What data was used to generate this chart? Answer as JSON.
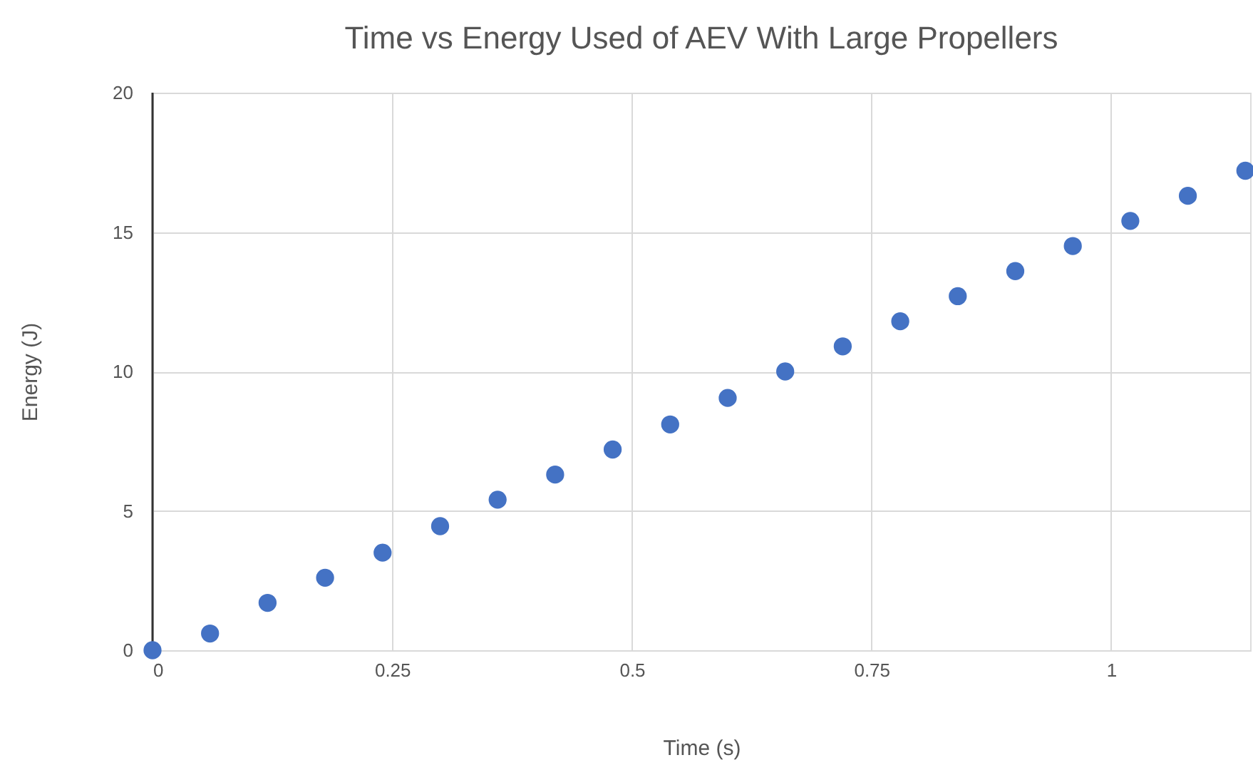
{
  "chart_data": {
    "type": "scatter",
    "title": "Time vs Energy Used of AEV With Large Propellers",
    "xlabel": "Time (s)",
    "ylabel": "Energy (J)",
    "x": [
      0,
      0.06,
      0.12,
      0.18,
      0.24,
      0.3,
      0.36,
      0.42,
      0.48,
      0.54,
      0.6,
      0.66,
      0.72,
      0.78,
      0.84,
      0.9,
      0.96,
      1.02,
      1.08,
      1.14
    ],
    "series": [
      {
        "color": "#4472c4",
        "values": [
          0,
          0.6,
          1.7,
          2.6,
          3.5,
          4.45,
          5.4,
          6.3,
          7.2,
          8.1,
          9.05,
          10.0,
          10.9,
          11.8,
          12.7,
          13.6,
          14.5,
          15.4,
          16.3,
          17.2
        ]
      }
    ],
    "xlim": [
      0,
      1.145
    ],
    "xticks": [
      0,
      0.25,
      0.5,
      0.75,
      1
    ],
    "ylim": [
      0,
      20
    ],
    "yticks": [
      0,
      5,
      10,
      15,
      20
    ],
    "grid": true,
    "marker": "circle",
    "legend": false
  }
}
